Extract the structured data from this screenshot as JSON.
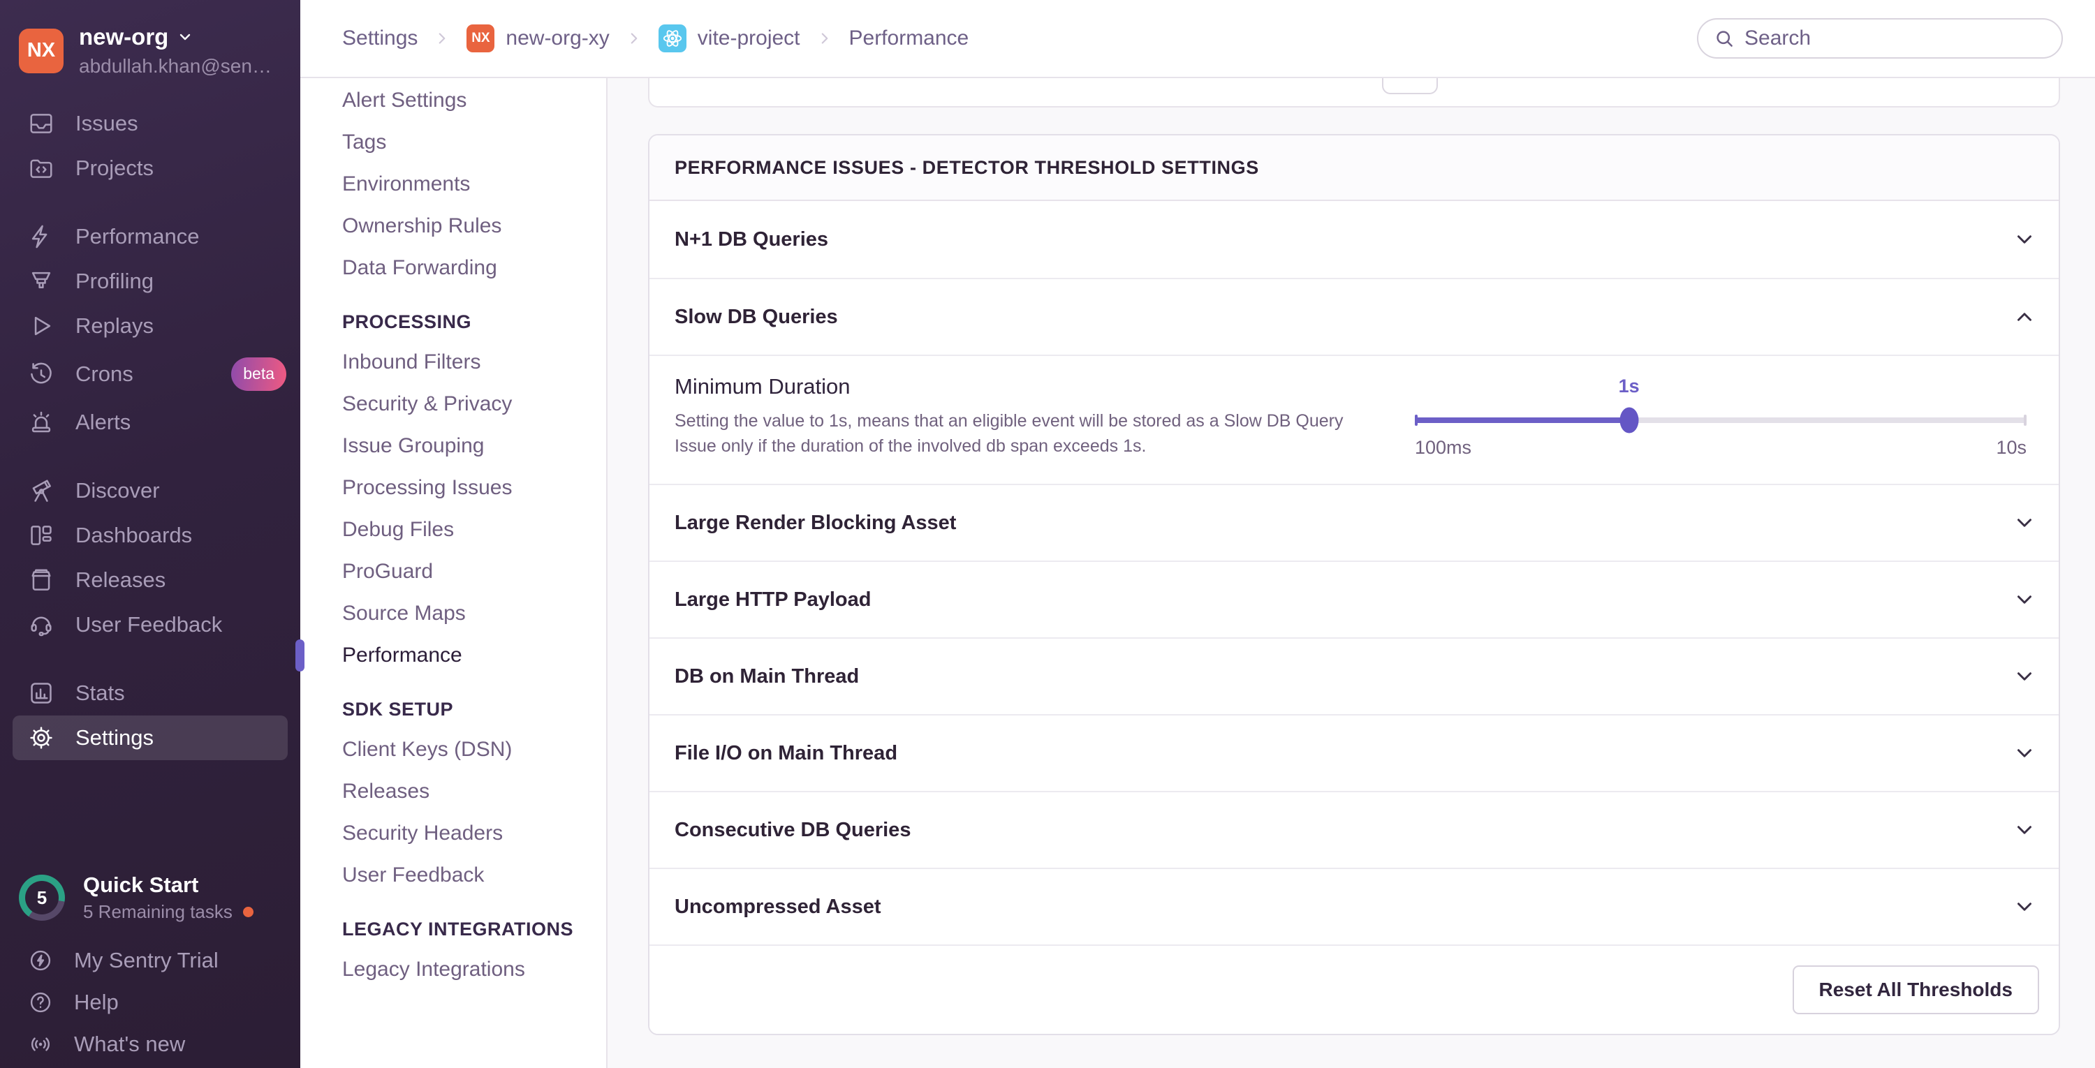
{
  "app": {
    "accent_color": "#6C5FC7",
    "orange_color": "#E9643F",
    "sidebar_color": "#31223e"
  },
  "org_switcher": {
    "initials": "NX",
    "name": "new-org",
    "email": "abdullah.khan@sen…"
  },
  "sidebar": {
    "groups": [
      {
        "items": [
          {
            "label": "Issues",
            "icon": "issues-icon"
          },
          {
            "label": "Projects",
            "icon": "projects-icon"
          }
        ]
      },
      {
        "items": [
          {
            "label": "Performance",
            "icon": "performance-icon"
          },
          {
            "label": "Profiling",
            "icon": "profiling-icon"
          },
          {
            "label": "Replays",
            "icon": "replays-icon"
          },
          {
            "label": "Crons",
            "icon": "crons-icon",
            "badge": "beta"
          },
          {
            "label": "Alerts",
            "icon": "alerts-icon"
          }
        ]
      },
      {
        "items": [
          {
            "label": "Discover",
            "icon": "discover-icon"
          },
          {
            "label": "Dashboards",
            "icon": "dashboards-icon"
          },
          {
            "label": "Releases",
            "icon": "releases-icon"
          },
          {
            "label": "User Feedback",
            "icon": "user-feedback-icon"
          }
        ]
      },
      {
        "items": [
          {
            "label": "Stats",
            "icon": "stats-icon"
          },
          {
            "label": "Settings",
            "icon": "gear-icon",
            "active": true
          }
        ]
      }
    ],
    "quick_start": {
      "progress_number": "5",
      "title": "Quick Start",
      "subtitle": "5 Remaining tasks"
    },
    "utility_items": [
      {
        "label": "My Sentry Trial",
        "icon": "trial-icon"
      },
      {
        "label": "Help",
        "icon": "help-icon"
      },
      {
        "label": "What's new",
        "icon": "whats-new-icon"
      }
    ]
  },
  "topbar": {
    "breadcrumbs": [
      {
        "label": "Settings"
      },
      {
        "label": "new-org-xy",
        "badge": "NX"
      },
      {
        "label": "vite-project",
        "badge": "react"
      },
      {
        "label": "Performance",
        "current": true
      }
    ],
    "search_placeholder": "Search"
  },
  "settings_nav": {
    "sections": [
      {
        "items": [
          {
            "label": "Alert Settings"
          },
          {
            "label": "Tags"
          },
          {
            "label": "Environments"
          },
          {
            "label": "Ownership Rules"
          },
          {
            "label": "Data Forwarding"
          }
        ]
      },
      {
        "header": "PROCESSING",
        "items": [
          {
            "label": "Inbound Filters"
          },
          {
            "label": "Security & Privacy"
          },
          {
            "label": "Issue Grouping"
          },
          {
            "label": "Processing Issues"
          },
          {
            "label": "Debug Files"
          },
          {
            "label": "ProGuard"
          },
          {
            "label": "Source Maps"
          },
          {
            "label": "Performance",
            "active": true
          }
        ]
      },
      {
        "header": "SDK SETUP",
        "items": [
          {
            "label": "Client Keys (DSN)"
          },
          {
            "label": "Releases"
          },
          {
            "label": "Security Headers"
          },
          {
            "label": "User Feedback"
          }
        ]
      },
      {
        "header": "LEGACY INTEGRATIONS",
        "items": [
          {
            "label": "Legacy Integrations"
          }
        ]
      }
    ]
  },
  "panel": {
    "title": "PERFORMANCE ISSUES - DETECTOR THRESHOLD SETTINGS",
    "rows": [
      {
        "label": "N+1 DB Queries",
        "expanded": false
      },
      {
        "label": "Slow DB Queries",
        "expanded": true
      },
      {
        "label": "Large Render Blocking Asset",
        "expanded": false
      },
      {
        "label": "Large HTTP Payload",
        "expanded": false
      },
      {
        "label": "DB on Main Thread",
        "expanded": false
      },
      {
        "label": "File I/O on Main Thread",
        "expanded": false
      },
      {
        "label": "Consecutive DB Queries",
        "expanded": false
      },
      {
        "label": "Uncompressed Asset",
        "expanded": false
      }
    ],
    "slow_db_detail": {
      "setting_label": "Minimum Duration",
      "setting_description": "Setting the value to 1s, means that an eligible event will be stored as a Slow DB Query Issue only if the duration of the involved db span exceeds 1s.",
      "slider": {
        "current_value": "1s",
        "min_label": "100ms",
        "max_label": "10s",
        "percent": 35
      }
    },
    "footer": {
      "reset_button": "Reset All Thresholds"
    }
  }
}
